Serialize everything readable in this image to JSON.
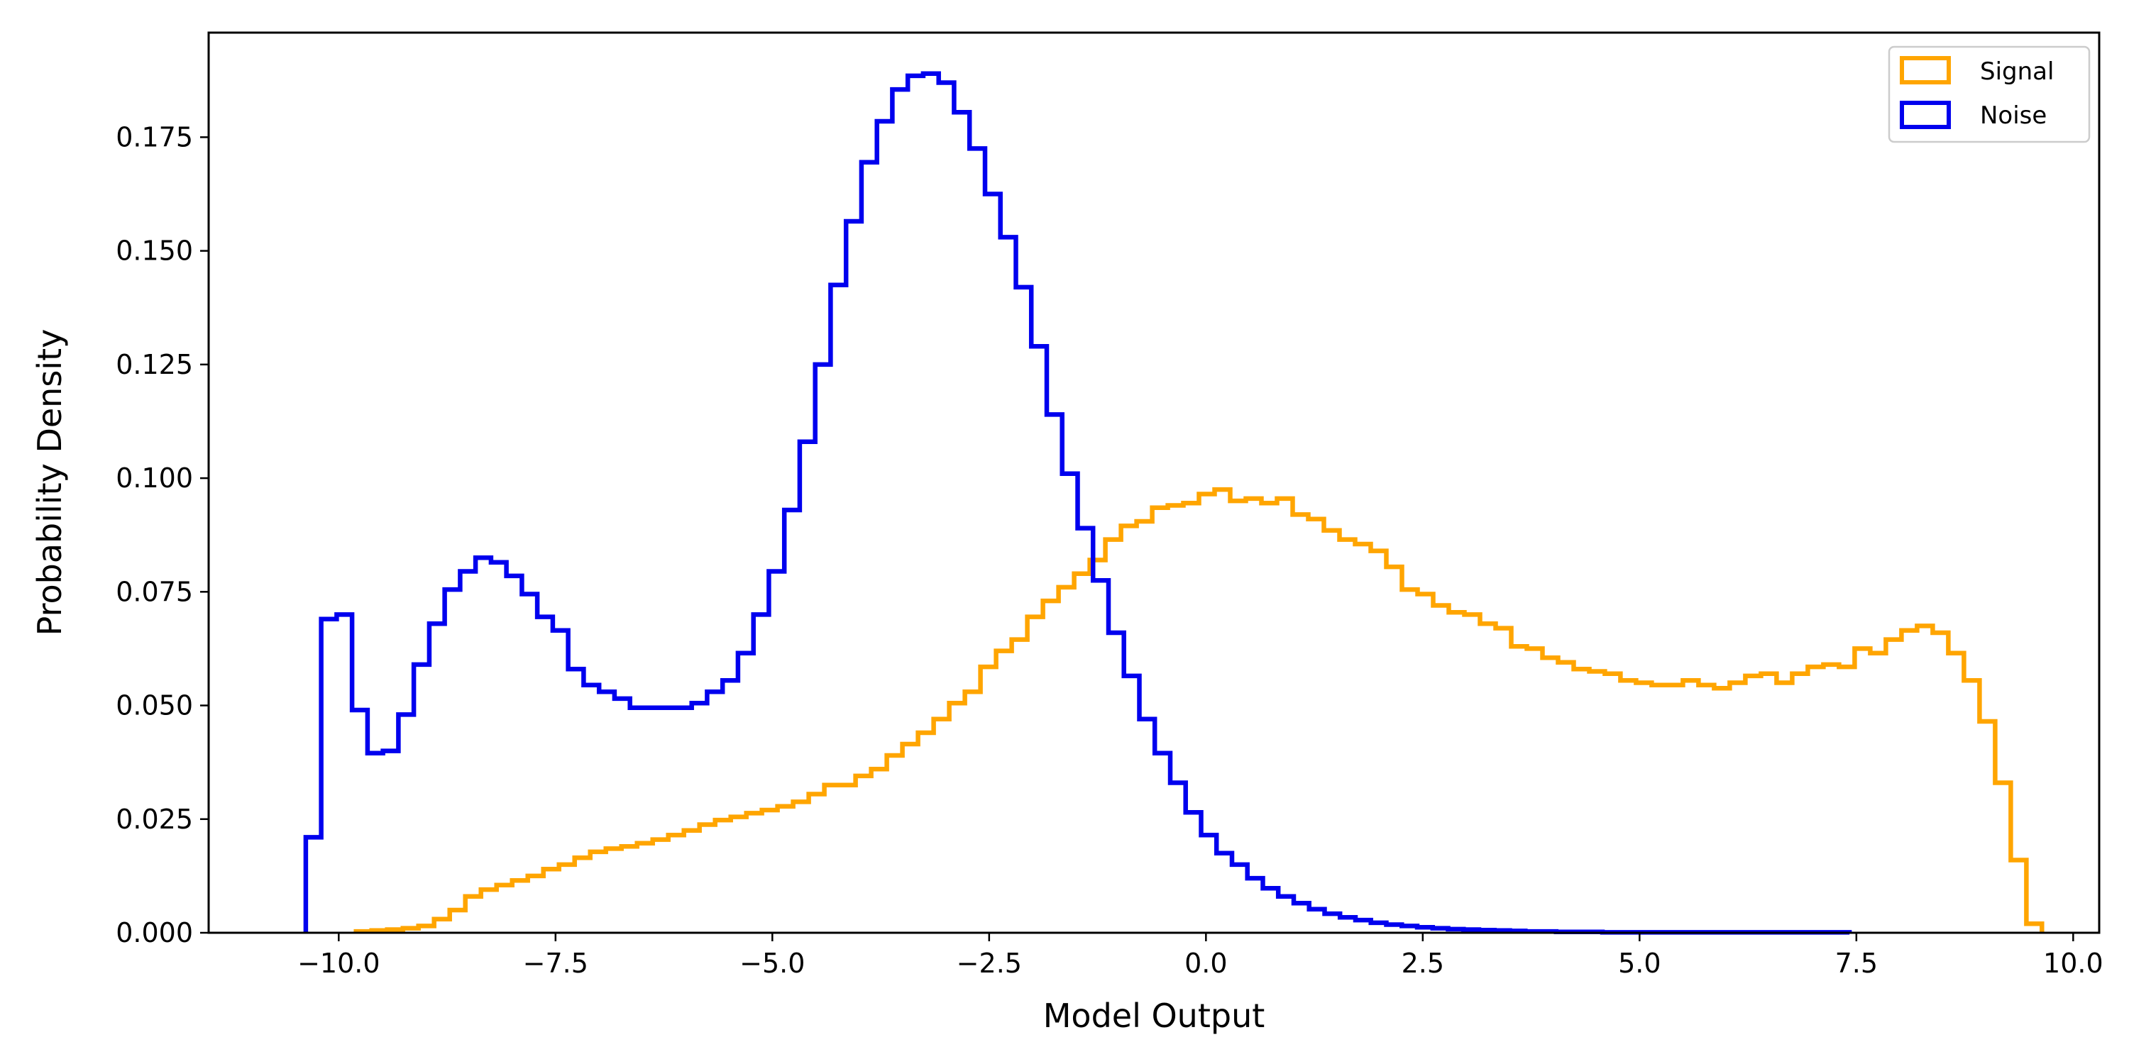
{
  "chart_data": {
    "type": "histogram",
    "xlabel": "Model Output",
    "ylabel": "Probability Density",
    "xlim": [
      -11.5,
      10.3
    ],
    "ylim": [
      0,
      0.198
    ],
    "xticks": [
      -10.0,
      -7.5,
      -5.0,
      -2.5,
      0.0,
      2.5,
      5.0,
      7.5,
      10.0
    ],
    "xtick_labels": [
      "−10.0",
      "−7.5",
      "−5.0",
      "−2.5",
      "0.0",
      "2.5",
      "5.0",
      "7.5",
      "10.0"
    ],
    "yticks": [
      0.0,
      0.025,
      0.05,
      0.075,
      0.1,
      0.125,
      0.15,
      0.175
    ],
    "ytick_labels": [
      "0.000",
      "0.025",
      "0.050",
      "0.075",
      "0.100",
      "0.125",
      "0.150",
      "0.175"
    ],
    "legend_position": "upper right",
    "series": [
      {
        "name": "Signal",
        "color": "#FFA500",
        "bin_start": -9.8,
        "bin_width": 0.18,
        "values": [
          0.0003,
          0.0005,
          0.0007,
          0.001,
          0.0015,
          0.003,
          0.005,
          0.008,
          0.0095,
          0.0105,
          0.0115,
          0.0125,
          0.014,
          0.015,
          0.0165,
          0.0178,
          0.0185,
          0.019,
          0.0197,
          0.0205,
          0.0215,
          0.0225,
          0.0238,
          0.0248,
          0.0255,
          0.0263,
          0.027,
          0.0278,
          0.0288,
          0.0305,
          0.0325,
          0.0325,
          0.0345,
          0.036,
          0.039,
          0.0415,
          0.044,
          0.047,
          0.0505,
          0.053,
          0.0585,
          0.062,
          0.0645,
          0.0695,
          0.073,
          0.076,
          0.079,
          0.082,
          0.0865,
          0.0895,
          0.0905,
          0.0935,
          0.094,
          0.0945,
          0.0965,
          0.0975,
          0.095,
          0.0955,
          0.0945,
          0.0955,
          0.092,
          0.091,
          0.0885,
          0.0865,
          0.0855,
          0.084,
          0.0805,
          0.0755,
          0.0745,
          0.072,
          0.0705,
          0.07,
          0.068,
          0.067,
          0.063,
          0.0625,
          0.0605,
          0.0595,
          0.058,
          0.0575,
          0.057,
          0.0555,
          0.055,
          0.0545,
          0.0545,
          0.0555,
          0.0545,
          0.0538,
          0.055,
          0.0565,
          0.057,
          0.055,
          0.057,
          0.0585,
          0.059,
          0.0585,
          0.0625,
          0.0615,
          0.0645,
          0.0665,
          0.0675,
          0.066,
          0.0615,
          0.0555,
          0.0465,
          0.033,
          0.016,
          0.002
        ]
      },
      {
        "name": "Noise",
        "color": "#0000EE",
        "bin_start": -10.38,
        "bin_width": 0.178,
        "values": [
          0.021,
          0.069,
          0.07,
          0.049,
          0.0395,
          0.04,
          0.048,
          0.059,
          0.068,
          0.0755,
          0.0795,
          0.0825,
          0.0815,
          0.0785,
          0.0745,
          0.0695,
          0.0665,
          0.058,
          0.0545,
          0.053,
          0.0515,
          0.0495,
          0.0495,
          0.0495,
          0.0495,
          0.0505,
          0.053,
          0.0555,
          0.0615,
          0.07,
          0.0795,
          0.093,
          0.108,
          0.125,
          0.1425,
          0.1565,
          0.1695,
          0.1785,
          0.1855,
          0.1885,
          0.189,
          0.187,
          0.1805,
          0.1725,
          0.1625,
          0.153,
          0.142,
          0.129,
          0.114,
          0.101,
          0.089,
          0.0775,
          0.066,
          0.0565,
          0.047,
          0.0395,
          0.033,
          0.0265,
          0.0215,
          0.0175,
          0.015,
          0.012,
          0.0098,
          0.008,
          0.0065,
          0.0052,
          0.0042,
          0.0034,
          0.0028,
          0.0022,
          0.0018,
          0.0015,
          0.0012,
          0.001,
          0.0008,
          0.0007,
          0.0006,
          0.0005,
          0.0004,
          0.0003,
          0.0003,
          0.0002,
          0.0002,
          0.0002,
          0.0001,
          0.0001,
          0.0001,
          0.0001,
          0.0001,
          0.0001,
          0.0001,
          0.0001,
          0.0001,
          0.0001,
          0.0001,
          0.0001,
          0.0001,
          0.0001,
          0.0001,
          0.0001
        ]
      }
    ]
  }
}
